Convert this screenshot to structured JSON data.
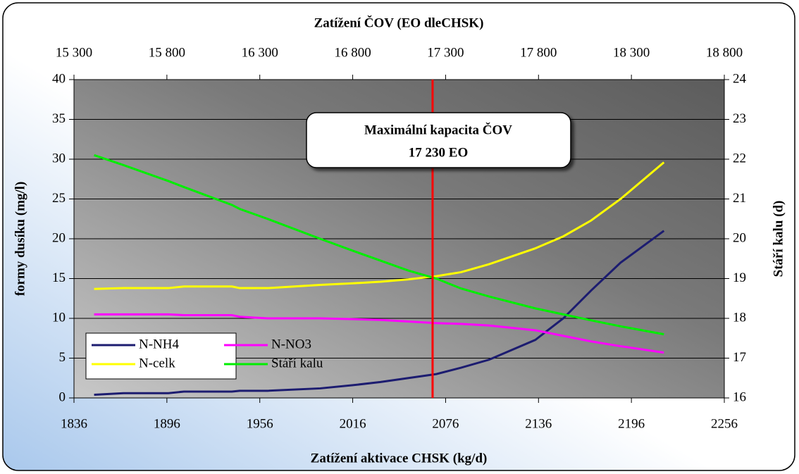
{
  "chart_data": {
    "type": "line",
    "title": "Zatížení ČOV (EO dleCHSK)",
    "x_label": "Zatížení aktivace CHSK (kg/d)",
    "y_label": "formy dusíku (mg/l)",
    "y2_label": "Stáří kalu (d)",
    "x": [
      1849,
      1868,
      1897,
      1907,
      1938,
      1943,
      1961,
      1995,
      2016,
      2034,
      2052,
      2070,
      2086,
      2104,
      2134,
      2152,
      2170,
      2189,
      2217
    ],
    "series": [
      {
        "name": "N-NH4",
        "color": "#1c1c70",
        "values": [
          0.4,
          0.6,
          0.6,
          0.8,
          0.8,
          0.9,
          0.9,
          1.2,
          1.6,
          2.0,
          2.5,
          3.0,
          3.8,
          4.8,
          7.3,
          10.0,
          13.5,
          17.0,
          21.0
        ]
      },
      {
        "name": "N-NO3",
        "color": "#ff00ff",
        "values": [
          10.5,
          10.5,
          10.5,
          10.4,
          10.4,
          10.2,
          10.0,
          10.0,
          9.9,
          9.8,
          9.6,
          9.4,
          9.3,
          9.1,
          8.5,
          7.8,
          7.1,
          6.5,
          5.7
        ]
      },
      {
        "name": "N-celk",
        "color": "#ffff00",
        "values": [
          13.7,
          13.8,
          13.8,
          14.0,
          14.0,
          13.8,
          13.8,
          14.2,
          14.4,
          14.6,
          14.9,
          15.3,
          15.8,
          16.8,
          18.8,
          20.3,
          22.3,
          25.0,
          29.6
        ]
      },
      {
        "name": "Stáří kalu",
        "color": "#00ee00",
        "axis": "y2",
        "values": [
          22.1,
          21.85,
          21.45,
          21.3,
          20.85,
          20.75,
          20.5,
          20.0,
          19.7,
          19.45,
          19.2,
          19.0,
          18.75,
          18.55,
          18.25,
          18.1,
          17.95,
          17.8,
          17.6
        ]
      }
    ],
    "xlim": [
      1836,
      2256
    ],
    "xticks": [
      1836,
      1896,
      1956,
      2016,
      2076,
      2136,
      2196,
      2256
    ],
    "x2lim": [
      15300,
      18800
    ],
    "x2ticks": [
      {
        "value": 15300,
        "label": "15 300"
      },
      {
        "value": 15800,
        "label": "15 800"
      },
      {
        "value": 16300,
        "label": "16 300"
      },
      {
        "value": 16800,
        "label": "16 800"
      },
      {
        "value": 17300,
        "label": "17 300"
      },
      {
        "value": 17800,
        "label": "17 800"
      },
      {
        "value": 18300,
        "label": "18 300"
      },
      {
        "value": 18800,
        "label": "18 800"
      }
    ],
    "ylim": [
      0,
      40
    ],
    "yticks": [
      0,
      5,
      10,
      15,
      20,
      25,
      30,
      35,
      40
    ],
    "y2lim": [
      16,
      24
    ],
    "y2ticks": [
      16,
      17,
      18,
      19,
      20,
      21,
      22,
      23,
      24
    ],
    "grid": true,
    "legend": "lower left",
    "reference_line": {
      "x2": 17230,
      "color": "#ff0000"
    },
    "annotation": [
      "Maximální kapacita ČOV",
      "17 230 EO"
    ]
  }
}
